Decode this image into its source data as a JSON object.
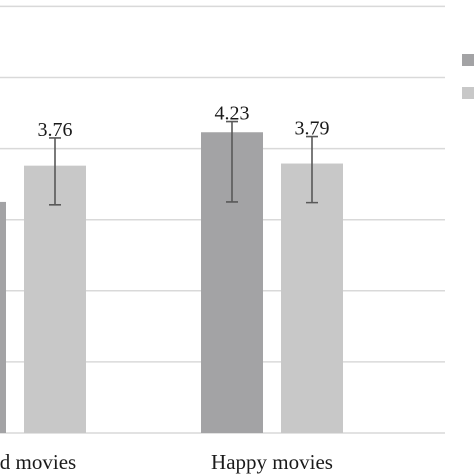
{
  "chart_data": {
    "type": "bar",
    "categories": [
      "Sad movies",
      "Happy movies"
    ],
    "category_labels_visible": [
      "d movies",
      "Happy movies"
    ],
    "series": [
      {
        "color": "#a3a3a5",
        "values": [
          3.25,
          4.23
        ],
        "value_labels": [
          "",
          "4.23"
        ],
        "error_low": [
          null,
          3.25
        ],
        "error_high": [
          null,
          4.38
        ]
      },
      {
        "color": "#c8c8c8",
        "values": [
          3.76,
          3.79
        ],
        "value_labels": [
          "3.76",
          "3.79"
        ],
        "error_low": [
          3.21,
          3.24
        ],
        "error_high": [
          4.15,
          4.17
        ]
      }
    ],
    "ylim": [
      0,
      6
    ],
    "y_gridlines": [
      0,
      1,
      2,
      3,
      4,
      5,
      6
    ],
    "grid": true,
    "legend": {
      "placement": "top-right",
      "colors": [
        "#a3a3a5",
        "#c8c8c8"
      ]
    },
    "title": "",
    "xlabel": "",
    "ylabel": ""
  }
}
